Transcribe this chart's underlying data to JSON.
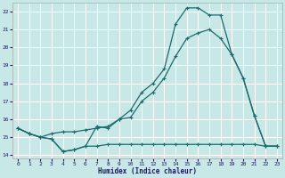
{
  "xlabel": "Humidex (Indice chaleur)",
  "background_color": "#c8e8e8",
  "grid_color": "#ffffff",
  "line_color": "#1a6b6b",
  "xlim": [
    -0.5,
    23.5
  ],
  "ylim": [
    13.8,
    22.5
  ],
  "xticks": [
    0,
    1,
    2,
    3,
    4,
    5,
    6,
    7,
    8,
    9,
    10,
    11,
    12,
    13,
    14,
    15,
    16,
    17,
    18,
    19,
    20,
    21,
    22,
    23
  ],
  "yticks": [
    14,
    15,
    16,
    17,
    18,
    19,
    20,
    21,
    22
  ],
  "line1_x": [
    0,
    1,
    2,
    3,
    4,
    5,
    6,
    7,
    8,
    9,
    10,
    11,
    12,
    13,
    14,
    15,
    16,
    17,
    18,
    19,
    20,
    21,
    22,
    23
  ],
  "line1_y": [
    15.5,
    15.2,
    15.0,
    14.9,
    14.2,
    14.3,
    14.5,
    14.5,
    14.6,
    14.6,
    14.6,
    14.6,
    14.6,
    14.6,
    14.6,
    14.6,
    14.6,
    14.6,
    14.6,
    14.6,
    14.6,
    14.6,
    14.5,
    14.5
  ],
  "line2_x": [
    0,
    1,
    2,
    3,
    4,
    5,
    6,
    7,
    8,
    9,
    10,
    11,
    12,
    13,
    14,
    15,
    16,
    17,
    18,
    19,
    20,
    21,
    22,
    23
  ],
  "line2_y": [
    15.5,
    15.2,
    15.0,
    15.2,
    15.3,
    15.3,
    15.4,
    15.5,
    15.6,
    16.0,
    16.1,
    17.0,
    17.5,
    18.3,
    19.5,
    20.5,
    20.8,
    21.0,
    20.5,
    19.6,
    18.3,
    16.2,
    14.5,
    14.5
  ],
  "line3_x": [
    0,
    1,
    2,
    3,
    4,
    5,
    6,
    7,
    8,
    9,
    10,
    11,
    12,
    13,
    14,
    15,
    16,
    17,
    18,
    19,
    20,
    21,
    22,
    23
  ],
  "line3_y": [
    15.5,
    15.2,
    15.0,
    14.9,
    14.2,
    14.3,
    14.5,
    15.6,
    15.5,
    16.0,
    16.5,
    17.5,
    18.0,
    18.8,
    21.3,
    22.2,
    22.2,
    21.8,
    21.8,
    19.6,
    18.3,
    16.2,
    14.5,
    14.5
  ]
}
